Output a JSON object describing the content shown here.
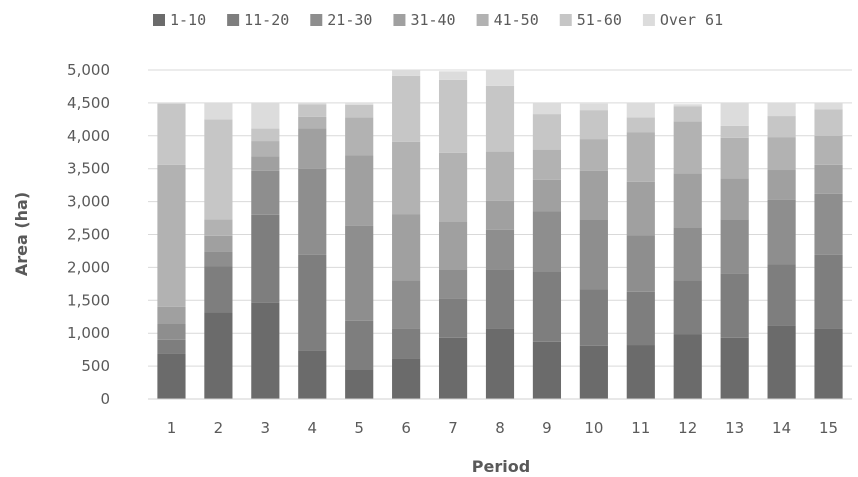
{
  "chart_data": {
    "type": "bar",
    "stacked": true,
    "xlabel": "Period",
    "ylabel": "Area (ha)",
    "ylim": [
      0,
      5000
    ],
    "yticks": [
      "0",
      "500",
      "1,000",
      "1,500",
      "2,000",
      "2,500",
      "3,000",
      "3,500",
      "4,000",
      "4,500",
      "5,000"
    ],
    "ytick_values": [
      0,
      500,
      1000,
      1500,
      2000,
      2500,
      3000,
      3500,
      4000,
      4500,
      5000
    ],
    "grid": true,
    "legend_position": "top",
    "categories": [
      "1",
      "2",
      "3",
      "4",
      "5",
      "6",
      "7",
      "8",
      "9",
      "10",
      "11",
      "12",
      "13",
      "14",
      "15"
    ],
    "series": [
      {
        "name": "1-10",
        "color": "#6b6b6b",
        "values": [
          690,
          1320,
          1460,
          740,
          450,
          620,
          930,
          1070,
          870,
          810,
          820,
          980,
          930,
          1120,
          1070
        ]
      },
      {
        "name": "11-20",
        "color": "#7e7e7e",
        "values": [
          210,
          700,
          1340,
          1450,
          740,
          450,
          600,
          900,
          1060,
          860,
          810,
          820,
          980,
          930,
          1120
        ]
      },
      {
        "name": "21-30",
        "color": "#8e8e8e",
        "values": [
          240,
          220,
          670,
          1310,
          1440,
          730,
          440,
          600,
          920,
          1060,
          860,
          810,
          820,
          980,
          930
        ]
      },
      {
        "name": "31-40",
        "color": "#a0a0a0",
        "values": [
          260,
          240,
          220,
          610,
          1070,
          1010,
          720,
          440,
          480,
          740,
          810,
          820,
          620,
          450,
          440
        ]
      },
      {
        "name": "41-50",
        "color": "#b2b2b2",
        "values": [
          2160,
          250,
          230,
          180,
          580,
          1100,
          1050,
          750,
          460,
          480,
          750,
          790,
          620,
          500,
          440
        ]
      },
      {
        "name": "51-60",
        "color": "#c6c6c6",
        "values": [
          930,
          1520,
          190,
          190,
          190,
          1000,
          1110,
          1000,
          540,
          440,
          230,
          230,
          180,
          320,
          400
        ]
      },
      {
        "name": "Over 61",
        "color": "#dcdcdc",
        "values": [
          0,
          250,
          390,
          20,
          20,
          90,
          130,
          240,
          170,
          100,
          220,
          30,
          350,
          200,
          100
        ]
      }
    ]
  }
}
